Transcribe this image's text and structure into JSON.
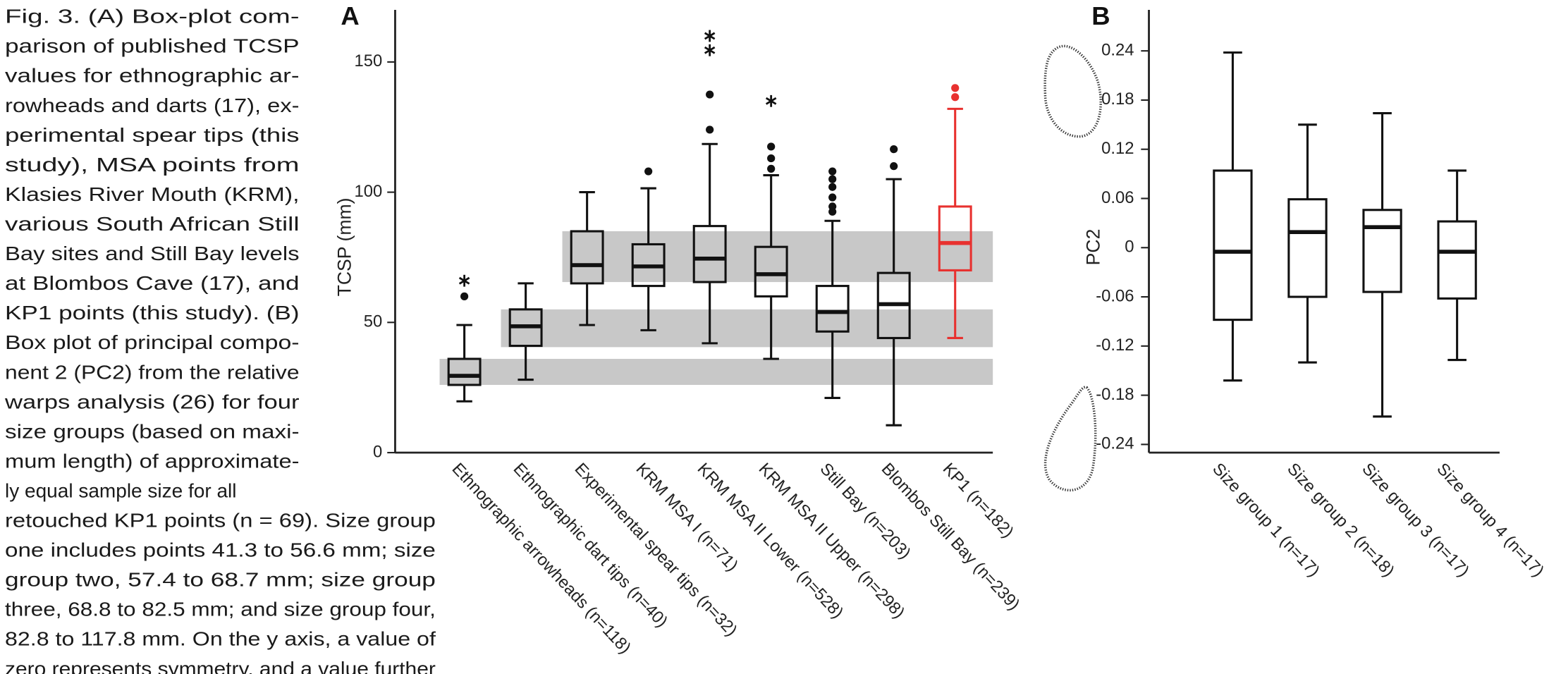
{
  "caption": [
    "Fig. 3. (A) Box-plot com-",
    "parison of published TCSP",
    "values for ethnographic ar-",
    "rowheads and darts (17), ex-",
    "perimental spear tips (this",
    "study), MSA points from",
    "Klasies River Mouth (KRM),",
    "various South African Still",
    "Bay sites and Still Bay levels",
    "at Blombos Cave (17), and",
    "KP1 points (this study). (B)",
    "Box plot of principal compo-",
    "nent 2 (PC2) from the relative",
    "warps analysis (26) for four",
    "size groups (based on maxi-",
    "mum length) of approximate-",
    "ly equal sample size for all",
    "retouched KP1 points (n = 69). Size group",
    "one includes points 41.3 to 56.6 mm; size",
    "group two, 57.4 to 68.7 mm; size group",
    "three, 68.8 to 82.5 mm; and size group four,",
    "82.8 to 117.8 mm. On the y axis, a value of",
    "zero represents symmetry, and a value further"
  ],
  "chart_data": [
    {
      "type": "box",
      "title": "A",
      "ylabel": "TCSP (mm)",
      "ylim": [
        0,
        170
      ],
      "yticks": [
        0,
        50,
        100,
        150
      ],
      "shaded_ranges": [
        [
          65.5,
          85
        ],
        [
          40.5,
          55
        ],
        [
          26,
          36
        ]
      ],
      "categories": [
        "Ethnographic arrowheads (n=118)",
        "Ethnographic dart tips (n=40)",
        "Experimental spear tips (n=32)",
        "KRM MSA I (n=71)",
        "KRM MSA II Lower (n=528)",
        "KRM MSA II Upper (n=298)",
        "Still Bay (n=203)",
        "Blombos Still Bay (n=239)",
        "KP1 (n=182)"
      ],
      "boxes": [
        {
          "whislo": 19.7,
          "q1": 26,
          "med": 29.5,
          "q3": 36,
          "whishi": 49,
          "fliers": [
            60
          ],
          "extremes": [
            66
          ],
          "color": "#111111"
        },
        {
          "whislo": 28,
          "q1": 41,
          "med": 48.5,
          "q3": 55,
          "whishi": 65,
          "fliers": [],
          "extremes": [],
          "color": "#111111"
        },
        {
          "whislo": 49,
          "q1": 65,
          "med": 72,
          "q3": 85,
          "whishi": 100,
          "fliers": [],
          "extremes": [],
          "color": "#111111"
        },
        {
          "whislo": 47,
          "q1": 64,
          "med": 71.5,
          "q3": 80,
          "whishi": 101.5,
          "fliers": [
            108
          ],
          "extremes": [],
          "color": "#111111"
        },
        {
          "whislo": 42,
          "q1": 65.5,
          "med": 74.5,
          "q3": 87,
          "whishi": 118.5,
          "fliers": [
            124,
            137.5
          ],
          "extremes": [
            154.5,
            160
          ],
          "color": "#111111"
        },
        {
          "whislo": 36,
          "q1": 60,
          "med": 68.5,
          "q3": 79,
          "whishi": 106.5,
          "fliers": [
            109,
            113,
            117.5
          ],
          "extremes": [
            135
          ],
          "color": "#111111"
        },
        {
          "whislo": 21,
          "q1": 46.5,
          "med": 54,
          "q3": 64,
          "whishi": 89,
          "fliers": [
            92.5,
            94.5,
            98,
            102,
            105,
            108
          ],
          "extremes": [],
          "color": "#111111"
        },
        {
          "whislo": 10.5,
          "q1": 44,
          "med": 57,
          "q3": 69,
          "whishi": 105,
          "fliers": [
            110,
            116.5
          ],
          "extremes": [],
          "color": "#111111"
        },
        {
          "whislo": 44,
          "q1": 70,
          "med": 80.5,
          "q3": 94.5,
          "whishi": 132,
          "fliers": [
            136.5,
            140
          ],
          "extremes": [],
          "color": "#e8312f"
        }
      ]
    },
    {
      "type": "box",
      "title": "B",
      "ylabel": "PC2",
      "ylim": [
        -0.25,
        0.29
      ],
      "yticks": [
        -0.24,
        -0.18,
        -0.12,
        -0.06,
        0,
        0.06,
        0.12,
        0.18,
        0.24
      ],
      "categories": [
        "Size group 1 (n=17)",
        "Size group 2 (n=18)",
        "Size group 3 (n=17)",
        "Size group 4 (n=17)"
      ],
      "boxes": [
        {
          "whislo": -0.162,
          "q1": -0.088,
          "med": -0.005,
          "q3": 0.094,
          "whishi": 0.238,
          "fliers": [],
          "extremes": [],
          "color": "#111111"
        },
        {
          "whislo": -0.14,
          "q1": -0.06,
          "med": 0.019,
          "q3": 0.059,
          "whishi": 0.15,
          "fliers": [],
          "extremes": [],
          "color": "#111111"
        },
        {
          "whislo": -0.206,
          "q1": -0.054,
          "med": 0.025,
          "q3": 0.046,
          "whishi": 0.164,
          "fliers": [],
          "extremes": [],
          "color": "#111111"
        },
        {
          "whislo": -0.137,
          "q1": -0.062,
          "med": -0.005,
          "q3": 0.032,
          "whishi": 0.094,
          "fliers": [],
          "extremes": [],
          "color": "#111111"
        }
      ]
    }
  ]
}
